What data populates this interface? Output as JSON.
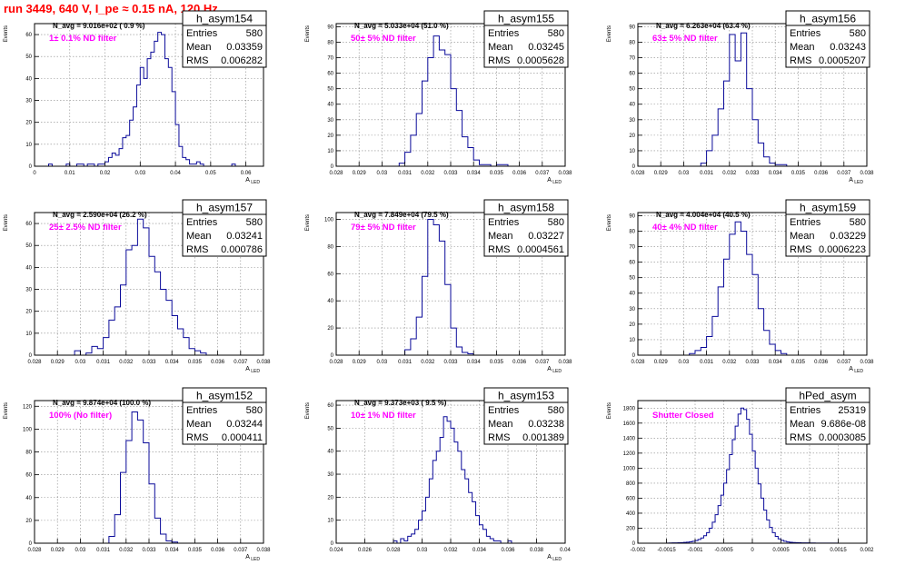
{
  "run_title": "run 3449,   640 V, I_pe ≈ 0.15 nA, 120 Hz",
  "colors": {
    "histogram_line": "#0a0a9a",
    "filter_label": "#ff00ff",
    "run_title": "#ff0000",
    "grid": "#8a8a8a",
    "axis": "#000000"
  },
  "chart_data": [
    {
      "type": "histogram",
      "name": "h_asym154",
      "navg_label": "N_avg = 9.016e+02 ( 0.9 %)",
      "filter_label": "1± 0.1% ND filter",
      "stats": {
        "entries_label": "Entries",
        "entries": "580",
        "mean_label": "Mean",
        "mean": "0.03359",
        "rms_label": "RMS",
        "rms": "0.006282"
      },
      "xlabel": "A_LED",
      "ylabel": "Events",
      "xlim": [
        0,
        0.065
      ],
      "ylim": [
        0,
        65
      ],
      "xticks": [
        0,
        0.01,
        0.02,
        0.03,
        0.04,
        0.05,
        0.06
      ],
      "xtick_labels": [
        "0",
        "0.01",
        "0.02",
        "0.03",
        "0.04",
        "0.05",
        "0.06"
      ],
      "yticks": [
        0,
        10,
        20,
        30,
        40,
        50,
        60
      ],
      "ytick_labels": [
        "0",
        "10",
        "20",
        "30",
        "40",
        "50",
        "60"
      ],
      "grid": true,
      "bin_edges_start": 0,
      "bin_width": 0.001,
      "counts": [
        0,
        0,
        0,
        0,
        1,
        0,
        0,
        0,
        0,
        1,
        0,
        0,
        1,
        1,
        0,
        1,
        1,
        0,
        1,
        1,
        2,
        4,
        6,
        5,
        8,
        13,
        14,
        21,
        27,
        37,
        45,
        40,
        49,
        52,
        57,
        61,
        60,
        49,
        45,
        34,
        19,
        9,
        4,
        3,
        1,
        1,
        2,
        1,
        0,
        0,
        0,
        0,
        0,
        0,
        0,
        0,
        1,
        0,
        0,
        0,
        0,
        0,
        0,
        0,
        0
      ]
    },
    {
      "type": "histogram",
      "name": "h_asym155",
      "navg_label": "N_avg = 5.033e+04 (51.0 %)",
      "filter_label": "50± 5% ND filter",
      "stats": {
        "entries_label": "Entries",
        "entries": "580",
        "mean_label": "Mean",
        "mean": "0.03245",
        "rms_label": "RMS",
        "rms": "0.0005628"
      },
      "xlabel": "A_LED",
      "ylabel": "Events",
      "xlim": [
        0.028,
        0.038
      ],
      "ylim": [
        0,
        92
      ],
      "xticks": [
        0.028,
        0.029,
        0.03,
        0.031,
        0.032,
        0.033,
        0.034,
        0.035,
        0.036,
        0.037,
        0.038
      ],
      "xtick_labels": [
        "0.028",
        "0.029",
        "0.03",
        "0.031",
        "0.032",
        "0.033",
        "0.034",
        "0.035",
        "0.036",
        "0.037",
        "0.038"
      ],
      "yticks": [
        0,
        10,
        20,
        30,
        40,
        50,
        60,
        70,
        80,
        90
      ],
      "ytick_labels": [
        "0",
        "10",
        "20",
        "30",
        "40",
        "50",
        "60",
        "70",
        "80",
        "90"
      ],
      "grid": true,
      "bin_edges_start": 0.03075,
      "bin_width": 0.00025,
      "counts": [
        2,
        9,
        20,
        34,
        55,
        70,
        84,
        75,
        72,
        50,
        36,
        19,
        12,
        4,
        1,
        1,
        0,
        1,
        1
      ]
    },
    {
      "type": "histogram",
      "name": "h_asym156",
      "navg_label": "N_avg = 6.263e+04 (63.4 %)",
      "filter_label": "63± 5% ND filter",
      "stats": {
        "entries_label": "Entries",
        "entries": "580",
        "mean_label": "Mean",
        "mean": "0.03243",
        "rms_label": "RMS",
        "rms": "0.0005207"
      },
      "xlabel": "A_LED",
      "ylabel": "Events",
      "xlim": [
        0.028,
        0.038
      ],
      "ylim": [
        0,
        92
      ],
      "xticks": [
        0.028,
        0.029,
        0.03,
        0.031,
        0.032,
        0.033,
        0.034,
        0.035,
        0.036,
        0.037,
        0.038
      ],
      "xtick_labels": [
        "0.028",
        "0.029",
        "0.03",
        "0.031",
        "0.032",
        "0.033",
        "0.034",
        "0.035",
        "0.036",
        "0.037",
        "0.038"
      ],
      "yticks": [
        0,
        10,
        20,
        30,
        40,
        50,
        60,
        70,
        80,
        90
      ],
      "ytick_labels": [
        "0",
        "10",
        "20",
        "30",
        "40",
        "50",
        "60",
        "70",
        "80",
        "90"
      ],
      "grid": true,
      "bin_edges_start": 0.03075,
      "bin_width": 0.00025,
      "counts": [
        2,
        10,
        20,
        37,
        55,
        85,
        68,
        86,
        50,
        30,
        15,
        6,
        2,
        1,
        1
      ]
    },
    {
      "type": "histogram",
      "name": "h_asym157",
      "navg_label": "N_avg = 2.590e+04 (26.2 %)",
      "filter_label": "25± 2.5% ND filter",
      "stats": {
        "entries_label": "Entries",
        "entries": "580",
        "mean_label": "Mean",
        "mean": "0.03241",
        "rms_label": "RMS",
        "rms": "0.000786"
      },
      "xlabel": "A_LED",
      "ylabel": "Events",
      "xlim": [
        0.028,
        0.038
      ],
      "ylim": [
        0,
        65
      ],
      "xticks": [
        0.028,
        0.029,
        0.03,
        0.031,
        0.032,
        0.033,
        0.034,
        0.035,
        0.036,
        0.037,
        0.038
      ],
      "xtick_labels": [
        "0.028",
        "0.029",
        "0.03",
        "0.031",
        "0.032",
        "0.033",
        "0.034",
        "0.035",
        "0.036",
        "0.037",
        "0.038"
      ],
      "yticks": [
        0,
        10,
        20,
        30,
        40,
        50,
        60
      ],
      "ytick_labels": [
        "0",
        "10",
        "20",
        "30",
        "40",
        "50",
        "60"
      ],
      "grid": true,
      "bin_edges_start": 0.02975,
      "bin_width": 0.00025,
      "counts": [
        2,
        0,
        1,
        4,
        3,
        8,
        16,
        22,
        32,
        48,
        50,
        62,
        58,
        45,
        38,
        30,
        25,
        18,
        12,
        8,
        3,
        2,
        1
      ]
    },
    {
      "type": "histogram",
      "name": "h_asym158",
      "navg_label": "N_avg = 7.849e+04 (79.5 %)",
      "filter_label": "79± 5% ND filter",
      "stats": {
        "entries_label": "Entries",
        "entries": "580",
        "mean_label": "Mean",
        "mean": "0.03227",
        "rms_label": "RMS",
        "rms": "0.0004561"
      },
      "xlabel": "A_LED",
      "ylabel": "Events",
      "xlim": [
        0.028,
        0.038
      ],
      "ylim": [
        0,
        105
      ],
      "xticks": [
        0.028,
        0.029,
        0.03,
        0.031,
        0.032,
        0.033,
        0.034,
        0.035,
        0.036,
        0.037,
        0.038
      ],
      "xtick_labels": [
        "0.028",
        "0.029",
        "0.03",
        "0.031",
        "0.032",
        "0.033",
        "0.034",
        "0.035",
        "0.036",
        "0.037",
        "0.038"
      ],
      "yticks": [
        0,
        20,
        40,
        60,
        80,
        100
      ],
      "ytick_labels": [
        "0",
        "20",
        "40",
        "60",
        "80",
        "100"
      ],
      "grid": true,
      "bin_edges_start": 0.031,
      "bin_width": 0.00025,
      "counts": [
        4,
        12,
        28,
        58,
        100,
        96,
        84,
        52,
        20,
        6,
        2,
        1
      ]
    },
    {
      "type": "histogram",
      "name": "h_asym159",
      "navg_label": "N_avg = 4.004e+04 (40.5 %)",
      "filter_label": "40± 4% ND filter",
      "stats": {
        "entries_label": "Entries",
        "entries": "580",
        "mean_label": "Mean",
        "mean": "0.03229",
        "rms_label": "RMS",
        "rms": "0.0006223"
      },
      "xlabel": "A_LED",
      "ylabel": "Events",
      "xlim": [
        0.028,
        0.038
      ],
      "ylim": [
        0,
        92
      ],
      "xticks": [
        0.028,
        0.029,
        0.03,
        0.031,
        0.032,
        0.033,
        0.034,
        0.035,
        0.036,
        0.037,
        0.038
      ],
      "xtick_labels": [
        "0.028",
        "0.029",
        "0.03",
        "0.031",
        "0.032",
        "0.033",
        "0.034",
        "0.035",
        "0.036",
        "0.037",
        "0.038"
      ],
      "yticks": [
        0,
        10,
        20,
        30,
        40,
        50,
        60,
        70,
        80,
        90
      ],
      "ytick_labels": [
        "0",
        "10",
        "20",
        "30",
        "40",
        "50",
        "60",
        "70",
        "80",
        "90"
      ],
      "grid": true,
      "bin_edges_start": 0.03025,
      "bin_width": 0.00025,
      "counts": [
        1,
        3,
        5,
        12,
        25,
        44,
        62,
        78,
        86,
        80,
        65,
        52,
        30,
        16,
        7,
        3,
        1
      ]
    },
    {
      "type": "histogram",
      "name": "h_asym152",
      "navg_label": "N_avg = 9.874e+04 (100.0 %)",
      "filter_label": "100% (No filter)",
      "stats": {
        "entries_label": "Entries",
        "entries": "580",
        "mean_label": "Mean",
        "mean": "0.03244",
        "rms_label": "RMS",
        "rms": "0.000411"
      },
      "xlabel": "A_LED",
      "ylabel": "Events",
      "xlim": [
        0.028,
        0.038
      ],
      "ylim": [
        0,
        125
      ],
      "xticks": [
        0.028,
        0.029,
        0.03,
        0.031,
        0.032,
        0.033,
        0.034,
        0.035,
        0.036,
        0.037,
        0.038
      ],
      "xtick_labels": [
        "0.028",
        "0.029",
        "0.03",
        "0.031",
        "0.032",
        "0.033",
        "0.034",
        "0.035",
        "0.036",
        "0.037",
        "0.038"
      ],
      "yticks": [
        0,
        20,
        40,
        60,
        80,
        100,
        120
      ],
      "ytick_labels": [
        "0",
        "20",
        "40",
        "60",
        "80",
        "100",
        "120"
      ],
      "grid": true,
      "bin_edges_start": 0.03125,
      "bin_width": 0.00025,
      "counts": [
        6,
        25,
        62,
        90,
        115,
        108,
        88,
        52,
        22,
        8,
        2,
        1
      ]
    },
    {
      "type": "histogram",
      "name": "h_asym153",
      "navg_label": "N_avg = 9.373e+03 ( 9.5 %)",
      "filter_label": "10± 1% ND filter",
      "stats": {
        "entries_label": "Entries",
        "entries": "580",
        "mean_label": "Mean",
        "mean": "0.03238",
        "rms_label": "RMS",
        "rms": "0.001389"
      },
      "xlabel": "A_LED",
      "ylabel": "Events",
      "xlim": [
        0.024,
        0.04
      ],
      "ylim": [
        0,
        62
      ],
      "xticks": [
        0.024,
        0.026,
        0.028,
        0.03,
        0.032,
        0.034,
        0.036,
        0.038,
        0.04
      ],
      "xtick_labels": [
        "0.024",
        "0.026",
        "0.028",
        "0.03",
        "0.032",
        "0.034",
        "0.036",
        "0.038",
        "0.04"
      ],
      "yticks": [
        0,
        10,
        20,
        30,
        40,
        50,
        60
      ],
      "ytick_labels": [
        "0",
        "10",
        "20",
        "30",
        "40",
        "50",
        "60"
      ],
      "grid": true,
      "bin_edges_start": 0.028,
      "bin_width": 0.00025,
      "counts": [
        1,
        0,
        2,
        1,
        3,
        4,
        6,
        10,
        14,
        20,
        28,
        36,
        40,
        46,
        55,
        53,
        50,
        44,
        40,
        32,
        28,
        22,
        18,
        12,
        8,
        6,
        3,
        2,
        1,
        1,
        0,
        0,
        1
      ]
    },
    {
      "type": "histogram",
      "name": "hPed_asym",
      "navg_label": "",
      "filter_label": "Shutter Closed",
      "stats": {
        "entries_label": "Entries",
        "entries": "25319",
        "mean_label": "Mean",
        "mean": "9.686e-08",
        "rms_label": "RMS",
        "rms": "0.0003085"
      },
      "xlabel": "",
      "ylabel": "Events",
      "xlim": [
        -0.002,
        0.002
      ],
      "ylim": [
        0,
        1900
      ],
      "xticks": [
        -0.002,
        -0.0015,
        -0.001,
        -0.0005,
        0,
        0.0005,
        0.001,
        0.0015,
        0.002
      ],
      "xtick_labels": [
        "-0.002",
        "-0.0015",
        "-0.001",
        "-0.0005",
        "0",
        "0.0005",
        "0.001",
        "0.0015",
        "0.002"
      ],
      "yticks": [
        0,
        200,
        400,
        600,
        800,
        1000,
        1200,
        1400,
        1600,
        1800
      ],
      "ytick_labels": [
        "0",
        "200",
        "400",
        "600",
        "800",
        "1000",
        "1200",
        "1400",
        "1600",
        "1800"
      ],
      "grid": true,
      "bin_edges_start": -0.0015,
      "bin_width": 5e-05,
      "counts": [
        2,
        3,
        4,
        5,
        6,
        8,
        10,
        14,
        18,
        25,
        35,
        50,
        70,
        100,
        140,
        200,
        280,
        380,
        500,
        640,
        800,
        980,
        1180,
        1380,
        1560,
        1720,
        1800,
        1780,
        1650,
        1450,
        1230,
        1000,
        790,
        600,
        440,
        310,
        210,
        140,
        90,
        58,
        38,
        25,
        17,
        12,
        9,
        7,
        6,
        5,
        4,
        4,
        3,
        3,
        2,
        2,
        2,
        2,
        1,
        1,
        1,
        1
      ]
    }
  ]
}
